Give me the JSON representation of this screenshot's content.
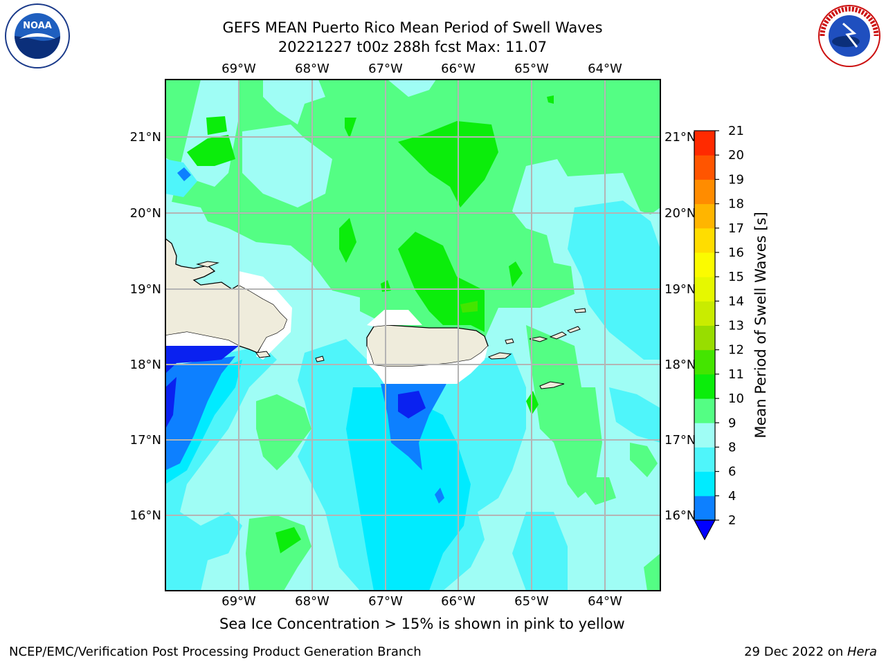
{
  "header": {
    "title_line1": "GEFS MEAN Puerto Rico Mean Period of Swell Waves",
    "title_line2": "20221227 t00z 288h fcst   Max: 11.07"
  },
  "map": {
    "lon_labels": [
      "69°W",
      "68°W",
      "67°W",
      "66°W",
      "65°W",
      "64°W"
    ],
    "lat_labels": [
      "21°N",
      "20°N",
      "19°N",
      "18°N",
      "17°N",
      "16°N"
    ],
    "land_color": "#efecdc",
    "ocean_default_color": "#9ffdf5"
  },
  "colorbar": {
    "label": "Mean Period of Swell Waves [s]",
    "ticks": [
      "2",
      "4",
      "6",
      "8",
      "9",
      "10",
      "11",
      "12",
      "13",
      "14",
      "15",
      "16",
      "17",
      "18",
      "19",
      "20",
      "21"
    ],
    "colors": [
      "#0a21f0",
      "#0d80ff",
      "#00ebff",
      "#4ff5fa",
      "#9ffdf5",
      "#54fe84",
      "#0bed0b",
      "#44e500",
      "#98dd00",
      "#c9ec00",
      "#e6f800",
      "#fbfb00",
      "#ffdd00",
      "#ffb500",
      "#ff8c00",
      "#ff5500",
      "#ff2a00",
      "#ff0000"
    ],
    "underflow_color": "#0000ff"
  },
  "footer": {
    "note": "Sea Ice Concentration > 15% is shown in pink to yellow",
    "producer": "NCEP/EMC/Verification Post Processing Product Generation Branch",
    "date_prefix": "29 Dec 2022 on ",
    "machine": "Hera"
  },
  "logos": {
    "left": "noaa-logo",
    "right": "national-weather-service-logo",
    "left_text": "NOAA",
    "right_text": "NATIONAL WEATHER SERVICE"
  }
}
